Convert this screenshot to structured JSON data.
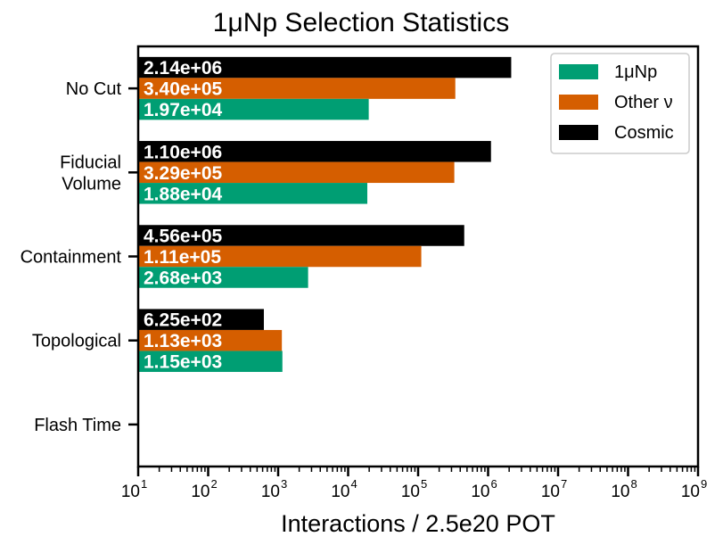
{
  "chart_data": {
    "type": "bar",
    "orientation": "horizontal",
    "title": "1μNp Selection Statistics",
    "xlabel": "Interactions / 2.5e20 POT",
    "ylabel": "",
    "xscale": "log",
    "xlim": [
      10,
      1000000000
    ],
    "x_ticks": [
      {
        "base": "10",
        "exp": "1"
      },
      {
        "base": "10",
        "exp": "2"
      },
      {
        "base": "10",
        "exp": "3"
      },
      {
        "base": "10",
        "exp": "4"
      },
      {
        "base": "10",
        "exp": "5"
      },
      {
        "base": "10",
        "exp": "6"
      },
      {
        "base": "10",
        "exp": "7"
      },
      {
        "base": "10",
        "exp": "8"
      },
      {
        "base": "10",
        "exp": "9"
      }
    ],
    "categories": [
      [
        "No Cut"
      ],
      [
        "Fiducial",
        "Volume"
      ],
      [
        "Containment"
      ],
      [
        "Topological"
      ],
      [
        "Flash Time"
      ]
    ],
    "series": [
      {
        "name": "1μNp",
        "color": "#009e73",
        "values": [
          19700,
          18800,
          2680,
          1150,
          null
        ],
        "labels": [
          "1.97e+04",
          "1.88e+04",
          "2.68e+03",
          "1.15e+03",
          ""
        ]
      },
      {
        "name": "Other ν",
        "color": "#d55e00",
        "values": [
          340000,
          329000,
          111000,
          1130,
          null
        ],
        "labels": [
          "3.40e+05",
          "3.29e+05",
          "1.11e+05",
          "1.13e+03",
          ""
        ]
      },
      {
        "name": "Cosmic",
        "color": "#000000",
        "values": [
          2140000,
          1100000,
          456000,
          625,
          null
        ],
        "labels": [
          "2.14e+06",
          "1.10e+06",
          "4.56e+05",
          "6.25e+02",
          ""
        ]
      }
    ],
    "grid": false,
    "legend": "top-right"
  }
}
